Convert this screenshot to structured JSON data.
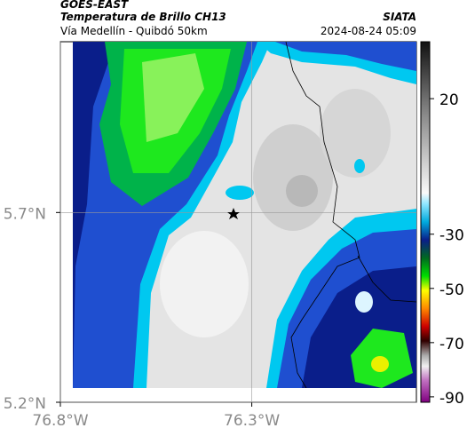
{
  "header": {
    "satellite": "GOES-EAST",
    "product": "Temperatura de Brillo CH13",
    "region": "Vía Medellín - Quibdó 50km",
    "source": "SIATA",
    "datetime": "2024-08-24 05:09"
  },
  "map": {
    "xlim": [
      -76.8,
      -75.87
    ],
    "ylim": [
      5.2,
      6.15
    ],
    "xticks": [
      {
        "value": -76.8,
        "label": "76.8°W"
      },
      {
        "value": -76.3,
        "label": "76.3°W"
      }
    ],
    "yticks": [
      {
        "value": 5.7,
        "label": "5.7°N"
      },
      {
        "value": 5.2,
        "label": "5.2°N"
      }
    ]
  },
  "colorbar": {
    "lim": [
      -92,
      41
    ],
    "ticks": [
      20,
      -30,
      -50,
      -70,
      -90
    ]
  }
}
